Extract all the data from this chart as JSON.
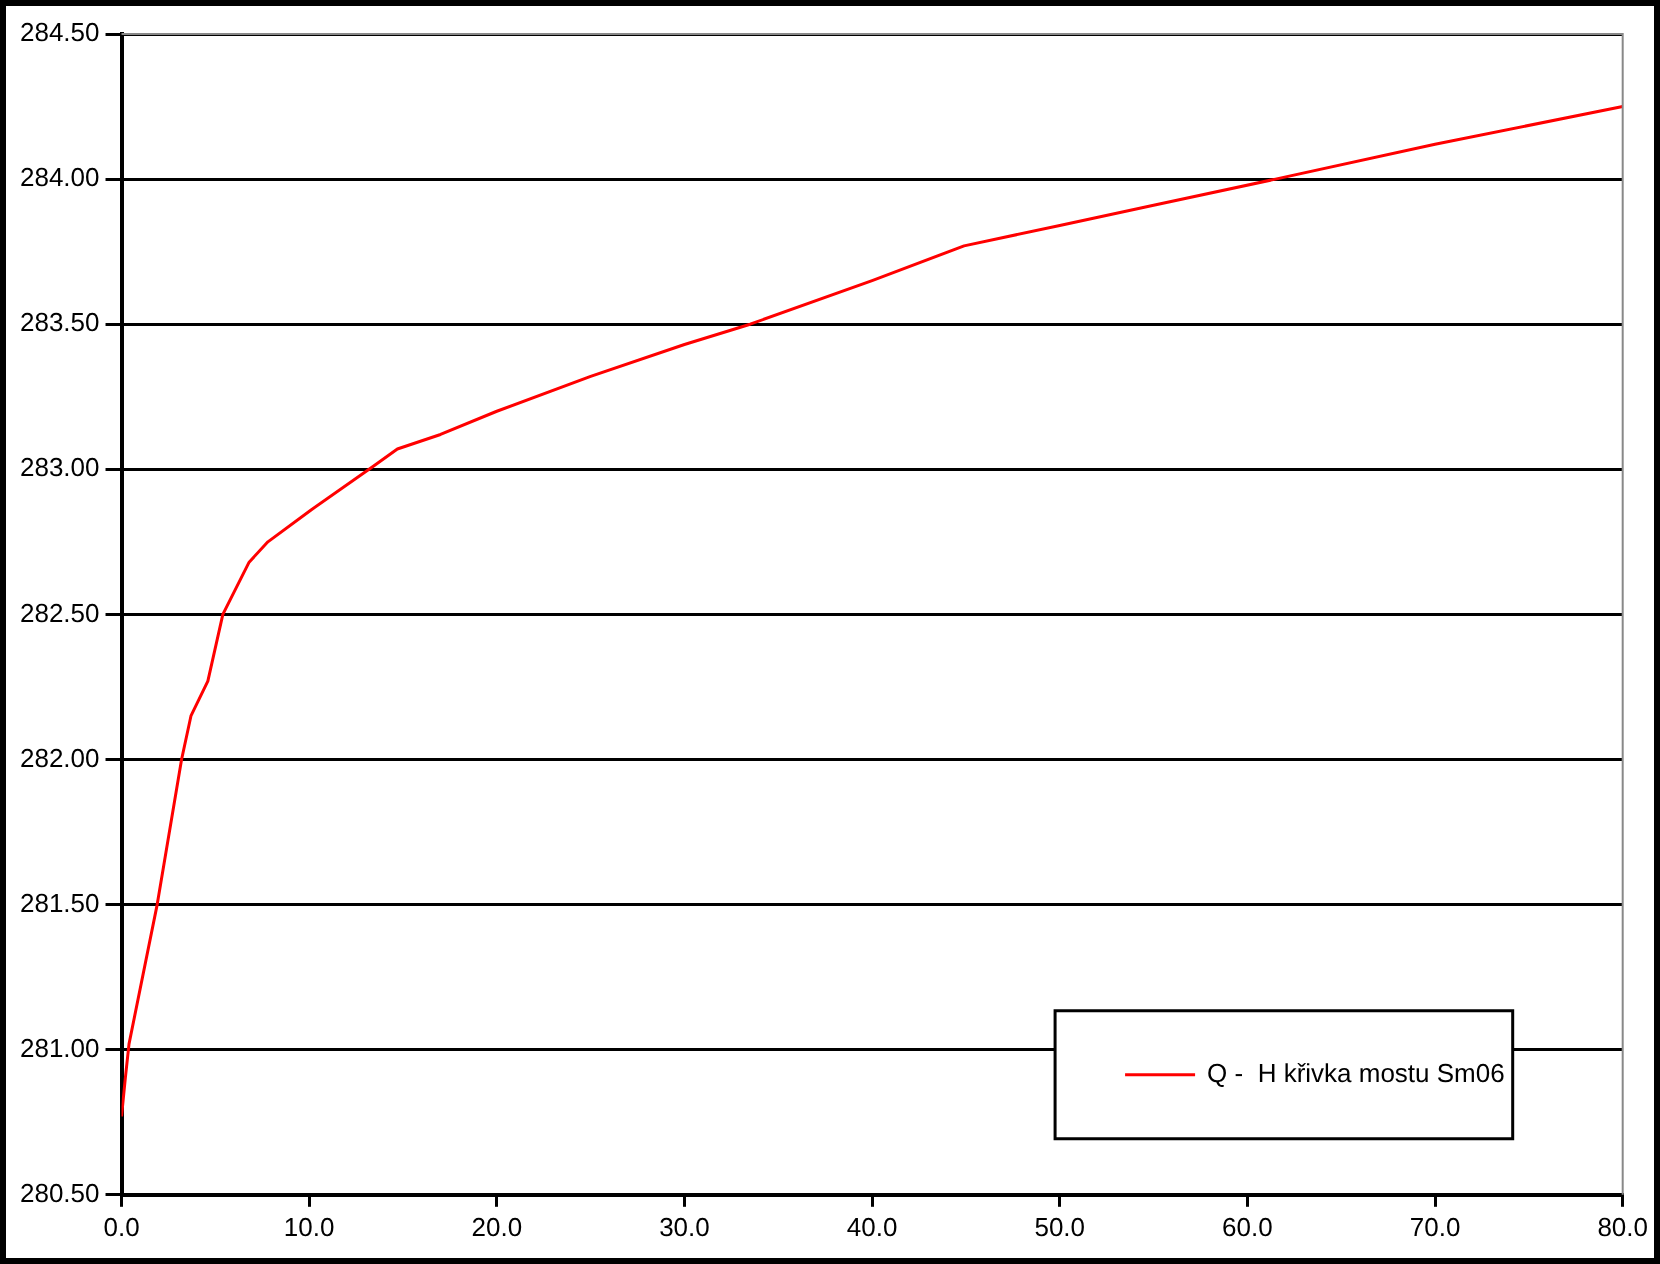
{
  "chart_data": {
    "type": "line",
    "x": [
      0,
      0.2,
      0.4,
      1.9,
      3.2,
      3.7,
      4.6,
      5.4,
      6.8,
      7.8,
      10.1,
      13.4,
      14.7,
      17.0,
      20,
      25,
      30,
      33.5,
      40,
      44.9,
      50,
      55,
      61.5,
      70,
      80
    ],
    "series": [
      {
        "name": "Q -  H křivka mostu Sm06",
        "color": "#ff0000",
        "values": [
          280.77,
          280.9,
          281.02,
          281.5,
          282.0,
          282.15,
          282.27,
          282.5,
          282.68,
          282.75,
          282.86,
          283.01,
          283.07,
          283.12,
          283.2,
          283.32,
          283.43,
          283.5,
          283.65,
          283.77,
          283.84,
          283.91,
          284.0,
          284.12,
          284.25
        ]
      }
    ],
    "xlim": [
      0,
      80
    ],
    "xticks": [
      {
        "value": 0,
        "label": "0.0"
      },
      {
        "value": 10,
        "label": "10.0"
      },
      {
        "value": 20,
        "label": "20.0"
      },
      {
        "value": 30,
        "label": "30.0"
      },
      {
        "value": 40,
        "label": "40.0"
      },
      {
        "value": 50,
        "label": "50.0"
      },
      {
        "value": 60,
        "label": "60.0"
      },
      {
        "value": 70,
        "label": "70.0"
      },
      {
        "value": 80,
        "label": "80.0"
      }
    ],
    "ylim": [
      280.5,
      284.5
    ],
    "yticks": [
      {
        "value": 280.5,
        "label": "280.50"
      },
      {
        "value": 281,
        "label": "281.00"
      },
      {
        "value": 281.5,
        "label": "281.50"
      },
      {
        "value": 282,
        "label": "282.00"
      },
      {
        "value": 282.5,
        "label": "282.50"
      },
      {
        "value": 283,
        "label": "283.00"
      },
      {
        "value": 283.5,
        "label": "283.50"
      },
      {
        "value": 284,
        "label": "284.00"
      },
      {
        "value": 284.5,
        "label": "284.50"
      }
    ],
    "grid": "y",
    "legend": "bottom right",
    "marker": "none",
    "line_style": "solid"
  }
}
